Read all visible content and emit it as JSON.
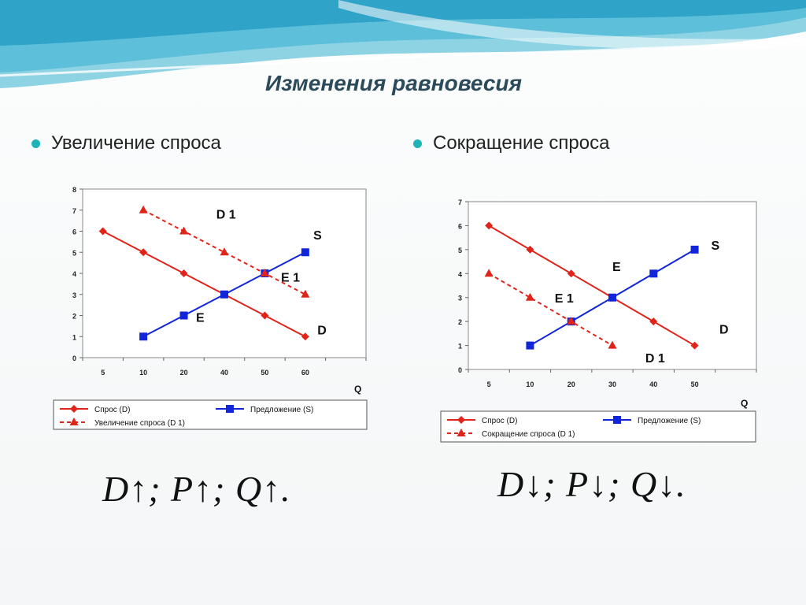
{
  "title": "Изменения равновесия",
  "bullets": [
    "Увеличение спроса",
    "Сокращение спроса"
  ],
  "colors": {
    "demand": "#e0241a",
    "supply": "#1026d8",
    "accent": "#1fb3b8"
  },
  "chart_data": [
    {
      "type": "line",
      "categories": [
        "5",
        "10",
        "20",
        "40",
        "50",
        "60"
      ],
      "xlabel": "Q",
      "ylim": [
        0,
        8
      ],
      "yticks": [
        "0",
        "1",
        "2",
        "3",
        "4",
        "5",
        "6",
        "7",
        "8"
      ],
      "series": [
        {
          "name": "Спрос (D)",
          "values": [
            6,
            5,
            4,
            3,
            2,
            1
          ],
          "color": "#e0241a",
          "marker": "diamond",
          "dash": false
        },
        {
          "name": "Предложение (S)",
          "values": [
            null,
            1,
            2,
            3,
            4,
            5
          ],
          "color": "#1026d8",
          "marker": "square",
          "dash": false
        },
        {
          "name": "Увеличение спроса (D 1)",
          "values": [
            null,
            7,
            6,
            5,
            4,
            3
          ],
          "color": "#e0241a",
          "marker": "triangle",
          "dash": true
        }
      ],
      "annotations": [
        {
          "text": "D 1",
          "x": 2.8,
          "y": 6.6
        },
        {
          "text": "S",
          "x": 5.2,
          "y": 5.6
        },
        {
          "text": "E 1",
          "x": 4.4,
          "y": 3.6
        },
        {
          "text": "E",
          "x": 2.3,
          "y": 1.7
        },
        {
          "text": "D",
          "x": 5.3,
          "y": 1.1
        }
      ]
    },
    {
      "type": "line",
      "categories": [
        "5",
        "10",
        "20",
        "30",
        "40",
        "50"
      ],
      "xlabel": "Q",
      "ylim": [
        0,
        7
      ],
      "yticks": [
        "0",
        "1",
        "2",
        "3",
        "4",
        "5",
        "6",
        "7"
      ],
      "series": [
        {
          "name": "Спрос (D)",
          "values": [
            6,
            5,
            4,
            3,
            2,
            1
          ],
          "color": "#e0241a",
          "marker": "diamond",
          "dash": false
        },
        {
          "name": "Предложение (S)",
          "values": [
            null,
            1,
            2,
            3,
            4,
            5
          ],
          "color": "#1026d8",
          "marker": "square",
          "dash": false
        },
        {
          "name": "Сокращение спроса (D 1)",
          "values": [
            4,
            3,
            2,
            1,
            null,
            null
          ],
          "color": "#e0241a",
          "marker": "triangle",
          "dash": true
        }
      ],
      "annotations": [
        {
          "text": "S",
          "x": 5.4,
          "y": 5.0
        },
        {
          "text": "E",
          "x": 3.0,
          "y": 4.1
        },
        {
          "text": "E 1",
          "x": 1.6,
          "y": 2.8
        },
        {
          "text": "D",
          "x": 5.6,
          "y": 1.5
        },
        {
          "text": "D 1",
          "x": 3.8,
          "y": 0.3
        }
      ]
    }
  ],
  "formulas": [
    "D↑; P↑; Q↑.",
    "D↓; P↓; Q↓."
  ]
}
